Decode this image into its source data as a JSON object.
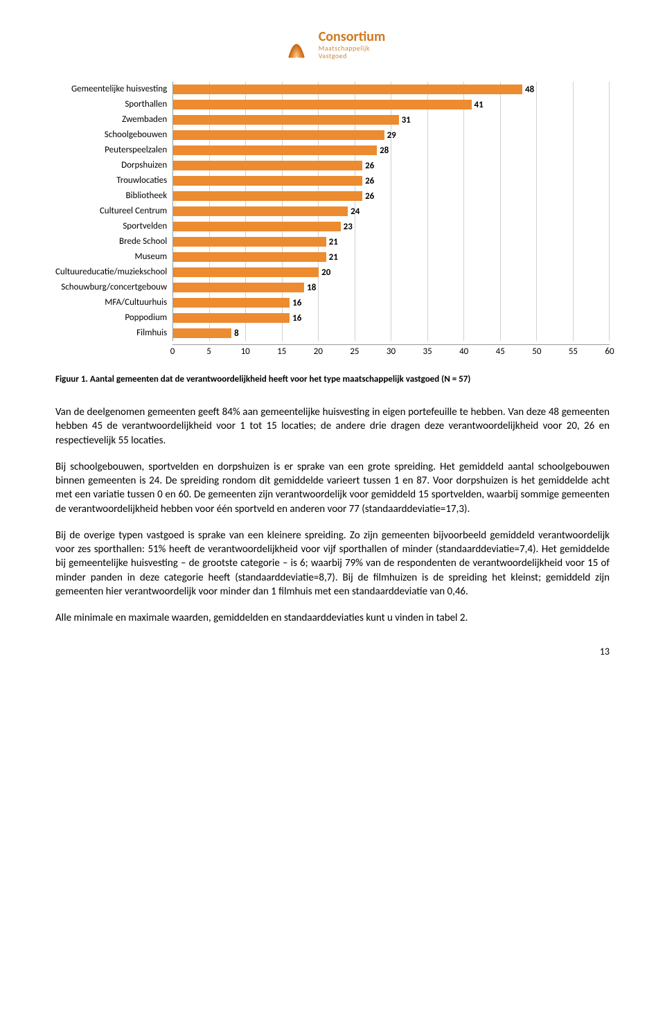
{
  "logo": {
    "name": "Consortium",
    "sub1": "Maatschappelijk",
    "sub2": "Vastgoed",
    "arc_colors": [
      "#c56b17",
      "#d57b25",
      "#e08a3a",
      "#eaa055",
      "#f2b877"
    ]
  },
  "chart": {
    "type": "bar",
    "bar_color": "#ec8b2f",
    "grid_color": "#d0d0d0",
    "axis_color": "#999999",
    "value_font_weight": "700",
    "label_fontsize": 13,
    "xmax": 60,
    "xtick_step": 5,
    "xticks": [
      "0",
      "5",
      "10",
      "15",
      "20",
      "25",
      "30",
      "35",
      "40",
      "45",
      "50",
      "55",
      "60"
    ],
    "categories": [
      "Gemeentelijke huisvesting",
      "Sporthallen",
      "Zwembaden",
      "Schoolgebouwen",
      "Peuterspeelzalen",
      "Dorpshuizen",
      "Trouwlocaties",
      "Bibliotheek",
      "Cultureel Centrum",
      "Sportvelden",
      "Brede School",
      "Museum",
      "Cultuureducatie/muziekschool",
      "Schouwburg/concertgebouw",
      "MFA/Cultuurhuis",
      "Poppodium",
      "Filmhuis"
    ],
    "values": [
      48,
      41,
      31,
      29,
      28,
      26,
      26,
      26,
      24,
      23,
      21,
      21,
      20,
      18,
      16,
      16,
      8
    ]
  },
  "figure_caption": "Figuur 1. Aantal gemeenten dat de verantwoordelijkheid heeft voor het type maatschappelijk vastgoed (N = 57)",
  "paragraphs": [
    "Van de deelgenomen gemeenten geeft 84% aan gemeentelijke huisvesting in eigen portefeuille te hebben. Van deze 48 gemeenten hebben 45 de verantwoordelijkheid voor 1 tot 15 locaties; de andere drie dragen deze verantwoordelijkheid voor 20, 26 en respectievelijk 55 locaties.",
    "Bij schoolgebouwen, sportvelden en dorpshuizen is er sprake van een grote spreiding. Het gemiddeld aantal schoolgebouwen binnen gemeenten is 24. De spreiding rondom dit gemiddelde varieert tussen 1 en 87. Voor dorpshuizen is het gemiddelde acht met een variatie tussen 0 en 60. De gemeenten zijn verantwoordelijk voor gemiddeld 15 sportvelden, waarbij sommige gemeenten de verantwoordelijkheid hebben voor één sportveld en anderen voor 77 (standaarddeviatie=17,3).",
    "Bij de overige typen vastgoed is sprake van een kleinere spreiding. Zo zijn gemeenten bijvoorbeeld gemiddeld verantwoordelijk voor zes sporthallen: 51% heeft de verantwoordelijkheid voor vijf sporthallen of minder (standaarddeviatie=7,4). Het gemiddelde bij gemeentelijke huisvesting – de grootste categorie – is 6; waarbij 79% van de respondenten de verantwoordelijkheid voor 15 of minder panden in deze categorie heeft (standaarddeviatie=8,7). Bij de filmhuizen is de spreiding het kleinst; gemiddeld zijn gemeenten hier verantwoordelijk voor minder dan 1 filmhuis met een standaarddeviatie van 0,46.",
    "Alle minimale en maximale waarden, gemiddelden en standaarddeviaties kunt u vinden in tabel 2."
  ],
  "page_number": "13"
}
